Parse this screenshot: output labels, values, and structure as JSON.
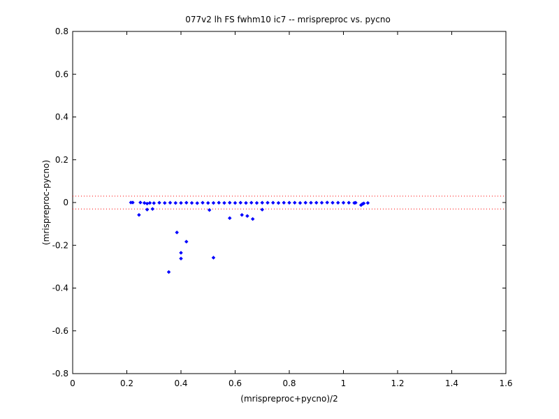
{
  "chart_data": {
    "type": "scatter",
    "title": "077v2 lh FS fwhm10 ic7 -- mrispreproc vs. pycno",
    "xlabel": "(mrispreproc+pycno)/2",
    "ylabel": "(mrispreproc-pycno)",
    "xlim": [
      0,
      1.6
    ],
    "ylim": [
      -0.8,
      0.8
    ],
    "xticks": [
      0,
      0.2,
      0.4,
      0.6,
      0.8,
      1,
      1.2,
      1.4,
      1.6
    ],
    "xtick_labels": [
      "0",
      "0.2",
      "0.4",
      "0.6",
      "0.8",
      "1",
      "1.2",
      "1.4",
      "1.6"
    ],
    "yticks": [
      -0.8,
      -0.6,
      -0.4,
      -0.2,
      0,
      0.2,
      0.4,
      0.6,
      0.8
    ],
    "ytick_labels": [
      "-0.8",
      "-0.6",
      "-0.4",
      "-0.2",
      "0",
      "0.2",
      "0.4",
      "0.6",
      "0.8"
    ],
    "grid": false,
    "reference_lines": [
      {
        "y": 0.03,
        "style": "dotted",
        "color": "#ff0000"
      },
      {
        "y": -0.03,
        "style": "dotted",
        "color": "#ff0000"
      }
    ],
    "series": [
      {
        "color": "#0000ff",
        "marker": "diamond",
        "points": [
          [
            0.215,
            0.0
          ],
          [
            0.222,
            0.0
          ],
          [
            0.25,
            0.0
          ],
          [
            0.265,
            -0.002
          ],
          [
            0.275,
            -0.005
          ],
          [
            0.285,
            -0.002
          ],
          [
            0.3,
            -0.003
          ],
          [
            0.32,
            -0.001
          ],
          [
            0.34,
            -0.002
          ],
          [
            0.36,
            -0.001
          ],
          [
            0.38,
            -0.002
          ],
          [
            0.4,
            -0.002
          ],
          [
            0.42,
            -0.001
          ],
          [
            0.44,
            -0.002
          ],
          [
            0.46,
            -0.003
          ],
          [
            0.48,
            -0.001
          ],
          [
            0.5,
            -0.002
          ],
          [
            0.52,
            -0.002
          ],
          [
            0.54,
            -0.001
          ],
          [
            0.56,
            -0.002
          ],
          [
            0.58,
            -0.001
          ],
          [
            0.6,
            -0.002
          ],
          [
            0.62,
            -0.001
          ],
          [
            0.64,
            -0.002
          ],
          [
            0.66,
            -0.001
          ],
          [
            0.68,
            -0.002
          ],
          [
            0.7,
            -0.001
          ],
          [
            0.72,
            -0.001
          ],
          [
            0.74,
            -0.001
          ],
          [
            0.76,
            -0.002
          ],
          [
            0.78,
            -0.001
          ],
          [
            0.8,
            -0.001
          ],
          [
            0.82,
            -0.001
          ],
          [
            0.84,
            -0.002
          ],
          [
            0.86,
            -0.001
          ],
          [
            0.88,
            -0.001
          ],
          [
            0.9,
            -0.001
          ],
          [
            0.92,
            -0.001
          ],
          [
            0.94,
            0.0
          ],
          [
            0.96,
            -0.001
          ],
          [
            0.98,
            -0.001
          ],
          [
            1.0,
            -0.001
          ],
          [
            1.02,
            -0.001
          ],
          [
            1.04,
            -0.002
          ],
          [
            1.045,
            -0.001
          ],
          [
            1.065,
            -0.012
          ],
          [
            1.07,
            -0.007
          ],
          [
            1.075,
            -0.004
          ],
          [
            1.09,
            -0.002
          ],
          [
            0.245,
            -0.058
          ],
          [
            0.275,
            -0.033
          ],
          [
            0.295,
            -0.03
          ],
          [
            0.385,
            -0.14
          ],
          [
            0.4,
            -0.235
          ],
          [
            0.4,
            -0.262
          ],
          [
            0.42,
            -0.183
          ],
          [
            0.355,
            -0.325
          ],
          [
            0.505,
            -0.035
          ],
          [
            0.52,
            -0.258
          ],
          [
            0.58,
            -0.073
          ],
          [
            0.625,
            -0.058
          ],
          [
            0.645,
            -0.063
          ],
          [
            0.665,
            -0.077
          ],
          [
            0.7,
            -0.033
          ]
        ]
      }
    ]
  }
}
